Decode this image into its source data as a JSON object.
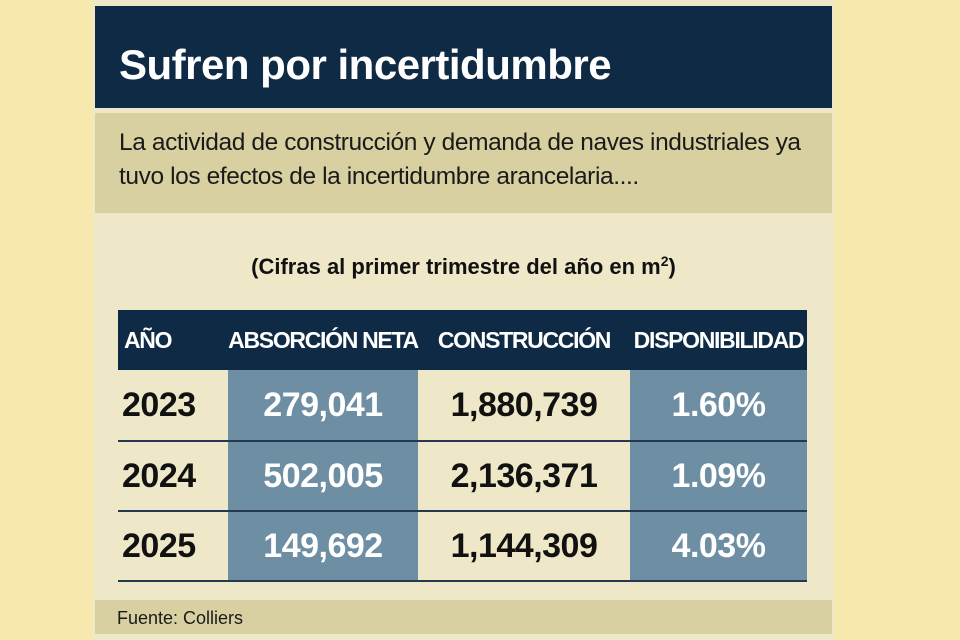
{
  "header": {
    "title": "Sufren por incertidumbre"
  },
  "intro": {
    "text": "La actividad de construcción y demanda de naves industriales ya tuvo los efectos de la incertidumbre arancelaria...."
  },
  "units_note": {
    "prefix": "(Cifras al primer trimestre del año en m",
    "superscript": "2",
    "suffix": ")"
  },
  "table": {
    "headers": [
      "AÑO",
      "ABSORCIÓN NETA",
      "CONSTRUCCIÓN",
      "DISPONIBILIDAD"
    ],
    "rows": [
      [
        "2023",
        "279,041",
        "1,880,739",
        "1.60%"
      ],
      [
        "2024",
        "502,005",
        "2,136,371",
        "1.09%"
      ],
      [
        "2025",
        "149,692",
        "1,144,309",
        "4.03%"
      ]
    ]
  },
  "source": {
    "text": "Fuente: Colliers"
  },
  "colors": {
    "navy": "#0f2a45",
    "steel_blue": "#6e8ea4",
    "cream": "#efe8c8",
    "tan": "#d8d0a0",
    "side_yellow": "#f7e9ad"
  }
}
